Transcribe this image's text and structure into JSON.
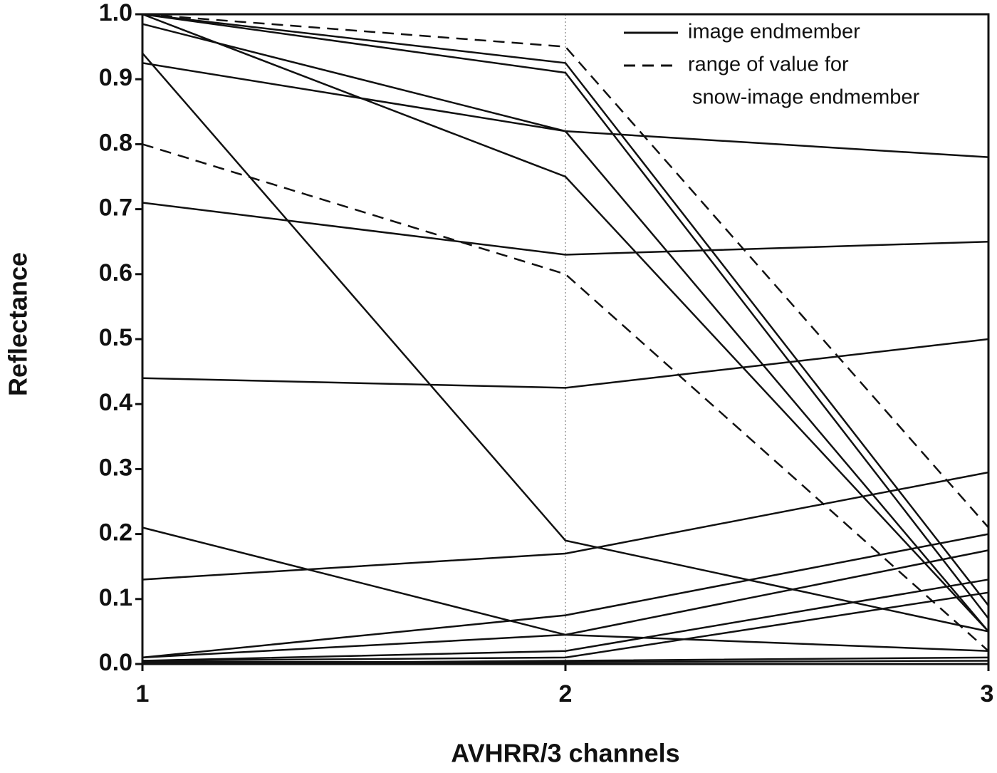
{
  "chart_data": {
    "type": "line",
    "x_label": "AVHRR/3 channels",
    "y_label": "Reflectance",
    "x": [
      1,
      2,
      3
    ],
    "xlim": [
      1,
      3
    ],
    "xticks": [
      1,
      2,
      3
    ],
    "ylim": [
      0,
      1
    ],
    "yticks": [
      {
        "value": 0,
        "label": "0.0"
      },
      0.1,
      0.2,
      0.3,
      0.4,
      0.5,
      0.6,
      0.7,
      0.8,
      0.9,
      {
        "value": 1,
        "label": "1.0"
      }
    ],
    "grid_x": true,
    "legend_position": "upper right",
    "series": [
      {
        "name": [
          "image endmember"
        ],
        "color": "#111111",
        "dashed": false,
        "lines": [
          [
            1.0,
            0.925,
            0.09
          ],
          [
            1.0,
            0.91,
            0.07
          ],
          [
            0.985,
            0.82,
            0.05
          ],
          [
            1.0,
            0.75,
            0.05
          ],
          [
            0.925,
            0.82,
            0.78
          ],
          [
            0.71,
            0.63,
            0.65
          ],
          [
            0.44,
            0.425,
            0.5
          ],
          [
            0.94,
            0.19,
            0.05
          ],
          [
            0.21,
            0.045,
            0.02
          ],
          [
            0.13,
            0.17,
            0.295
          ],
          [
            0.01,
            0.075,
            0.2
          ],
          [
            0.01,
            0.045,
            0.175
          ],
          [
            0.005,
            0.02,
            0.13
          ],
          [
            0.005,
            0.01,
            0.11
          ],
          [
            0.0,
            0.005,
            0.01
          ],
          [
            0.003,
            0.003,
            0.005
          ]
        ]
      },
      {
        "name": [
          "range of value for",
          "snow-image endmember"
        ],
        "color": "#111111",
        "dashed": true,
        "lines": [
          [
            1.0,
            0.95,
            0.21
          ],
          [
            0.8,
            0.6,
            0.02
          ]
        ]
      }
    ]
  }
}
